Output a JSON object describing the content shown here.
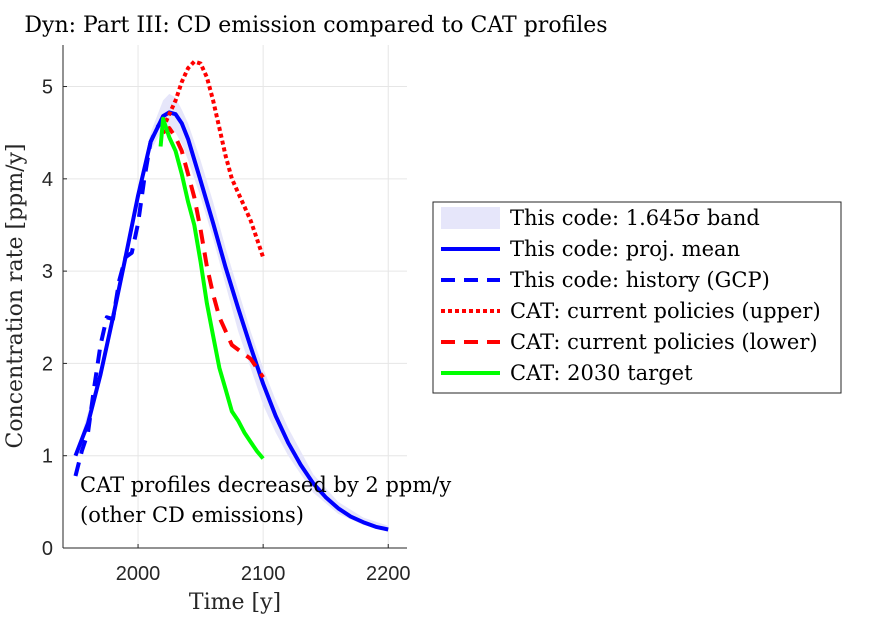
{
  "chart_data": {
    "type": "line",
    "title": "Dyn: Part III: CD emission compared to CAT profiles",
    "xlabel": "Time [y]",
    "ylabel": "Concentration rate [ppm/y]",
    "xlim": [
      1940,
      2215
    ],
    "ylim": [
      0,
      5.45
    ],
    "xticks": [
      2000,
      2100,
      2200
    ],
    "yticks": [
      0,
      1,
      2,
      3,
      4,
      5
    ],
    "grid": true,
    "legend_position": "right, outside plot",
    "annotation": [
      "CAT profiles decreased by 2 ppm/y",
      "(other CD emissions)"
    ],
    "series": [
      {
        "name": "This code: 1.645σ band",
        "style": "band",
        "color": "#e6e6fa",
        "x": [
          1950,
          1970,
          1990,
          2000,
          2010,
          2020,
          2025,
          2030,
          2035,
          2040,
          2050,
          2060,
          2070,
          2080,
          2090,
          2100,
          2110,
          2120,
          2140,
          2160,
          2180,
          2200
        ],
        "upper": [
          1.0,
          1.95,
          3.2,
          3.9,
          4.5,
          4.85,
          4.92,
          4.88,
          4.75,
          4.6,
          4.2,
          3.75,
          3.25,
          2.8,
          2.35,
          1.95,
          1.6,
          1.3,
          0.8,
          0.5,
          0.33,
          0.24
        ],
        "lower": [
          1.0,
          1.85,
          3.05,
          3.75,
          4.3,
          4.55,
          4.55,
          4.5,
          4.38,
          4.2,
          3.8,
          3.35,
          2.85,
          2.35,
          1.95,
          1.55,
          1.25,
          1.0,
          0.6,
          0.37,
          0.25,
          0.18
        ]
      },
      {
        "name": "This code: proj. mean",
        "style": "solid",
        "color": "#0000ff",
        "x": [
          1950,
          1960,
          1970,
          1980,
          1990,
          2000,
          2010,
          2020,
          2025,
          2030,
          2035,
          2040,
          2050,
          2060,
          2070,
          2080,
          2090,
          2100,
          2110,
          2120,
          2130,
          2140,
          2150,
          2160,
          2170,
          2180,
          2190,
          2200
        ],
        "values": [
          1.0,
          1.35,
          1.88,
          2.5,
          3.15,
          3.82,
          4.4,
          4.68,
          4.72,
          4.7,
          4.6,
          4.43,
          3.98,
          3.52,
          3.04,
          2.6,
          2.18,
          1.78,
          1.43,
          1.14,
          0.9,
          0.7,
          0.55,
          0.43,
          0.34,
          0.28,
          0.23,
          0.2
        ]
      },
      {
        "name": "This code: history (GCP)",
        "style": "dashed",
        "color": "#0000ff",
        "x": [
          1950,
          1955,
          1960,
          1965,
          1970,
          1975,
          1980,
          1985,
          1990,
          1995,
          2000,
          2005,
          2010,
          2015,
          2020
        ],
        "values": [
          0.78,
          1.05,
          1.25,
          1.75,
          2.2,
          2.5,
          2.48,
          2.9,
          3.15,
          3.2,
          3.52,
          4.0,
          4.4,
          4.55,
          4.65
        ]
      },
      {
        "name": "CAT: current policies (upper)",
        "style": "dotted",
        "color": "#ff0000",
        "x": [
          2020,
          2025,
          2030,
          2035,
          2040,
          2045,
          2050,
          2055,
          2060,
          2065,
          2070,
          2075,
          2080,
          2085,
          2090,
          2095,
          2100
        ],
        "values": [
          4.55,
          4.7,
          4.85,
          5.05,
          5.2,
          5.27,
          5.25,
          5.1,
          4.85,
          4.55,
          4.25,
          4.0,
          3.85,
          3.7,
          3.55,
          3.35,
          3.15
        ]
      },
      {
        "name": "CAT: current policies (lower)",
        "style": "dashed",
        "color": "#ff0000",
        "x": [
          2020,
          2025,
          2030,
          2035,
          2040,
          2045,
          2050,
          2055,
          2060,
          2065,
          2070,
          2075,
          2080,
          2085,
          2090,
          2095,
          2100
        ],
        "values": [
          4.5,
          4.55,
          4.45,
          4.3,
          4.05,
          3.8,
          3.45,
          3.05,
          2.75,
          2.5,
          2.35,
          2.2,
          2.15,
          2.1,
          2.05,
          1.95,
          1.85
        ]
      },
      {
        "name": "CAT: 2030 target",
        "style": "solid",
        "color": "#00ff00",
        "x": [
          2018,
          2020,
          2025,
          2030,
          2035,
          2040,
          2045,
          2050,
          2055,
          2060,
          2065,
          2070,
          2075,
          2080,
          2085,
          2090,
          2095,
          2100
        ],
        "values": [
          4.35,
          4.65,
          4.45,
          4.3,
          4.05,
          3.75,
          3.5,
          3.1,
          2.65,
          2.3,
          1.95,
          1.72,
          1.48,
          1.38,
          1.25,
          1.15,
          1.05,
          0.97
        ]
      }
    ]
  }
}
